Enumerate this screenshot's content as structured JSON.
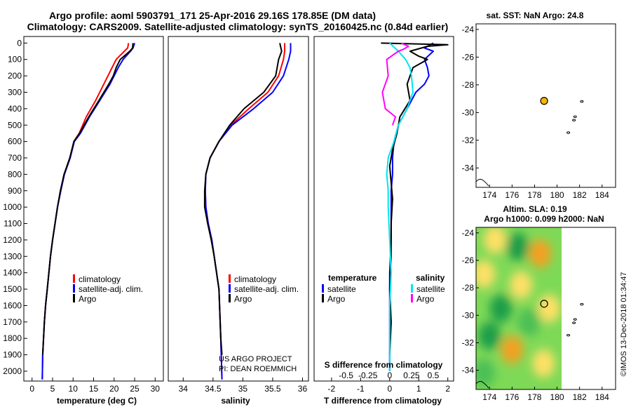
{
  "header": {
    "title_line1": "Argo profile: aoml 5903791_171 25-Apr-2016 29.16S 178.85E (DM data)",
    "title_line2": "Climatology: CARS2009. Satellite-adjusted climatology: synTS_20160425.nc (0.84d earlier)"
  },
  "credits": {
    "project_line1": "US ARGO PROJECT",
    "project_line2": "PI: DEAN ROEMMICH",
    "imos_stamp": "©IMOS 13-Dec-2018 01:34:47"
  },
  "colors": {
    "climatology": "#ff0000",
    "satellite": "#0000ff",
    "argo": "#000000",
    "salinity_satellite": "#00e5ee",
    "salinity_argo": "#ff00ff",
    "marker": "#f5b800"
  },
  "chart_data": [
    {
      "id": "temperature",
      "type": "line",
      "xlabel": "temperature (deg C)",
      "xlim": [
        -2,
        32
      ],
      "ylim": [
        2060,
        -40
      ],
      "xticks": [
        0,
        5,
        10,
        15,
        20,
        25,
        30
      ],
      "yticks": [
        0,
        100,
        200,
        300,
        400,
        500,
        600,
        700,
        800,
        900,
        1000,
        1100,
        1200,
        1300,
        1400,
        1500,
        1600,
        1700,
        1800,
        1900,
        2000
      ],
      "legend": {
        "items": [
          "climatology",
          "satellite-adj. clim.",
          "Argo"
        ]
      },
      "series": [
        {
          "name": "climatology",
          "color": "#ff0000",
          "x": [
            23.5,
            23.3,
            22.5,
            20.5,
            19.5,
            18.5,
            17.5,
            15.5,
            13.2,
            11.5,
            10.2,
            9.2,
            7.8,
            7.0,
            6.2,
            5.6,
            5.0,
            4.5,
            4.1,
            3.7,
            3.3,
            3.0,
            2.8,
            2.6,
            2.5
          ],
          "y": [
            0,
            30,
            50,
            100,
            150,
            200,
            250,
            350,
            450,
            550,
            600,
            700,
            800,
            900,
            1000,
            1100,
            1200,
            1300,
            1400,
            1500,
            1600,
            1700,
            1800,
            1900,
            2050
          ]
        },
        {
          "name": "satellite-adj. clim.",
          "color": "#0000ff",
          "x": [
            25.0,
            24.6,
            24.0,
            22.2,
            21.0,
            20.0,
            19.0,
            16.5,
            14.0,
            11.8,
            10.3,
            9.3,
            7.9,
            7.0,
            6.2,
            5.6,
            5.0,
            4.5,
            4.1,
            3.7,
            3.3,
            3.0,
            2.8,
            2.6,
            2.5
          ],
          "y": [
            0,
            30,
            50,
            100,
            150,
            200,
            250,
            350,
            450,
            550,
            600,
            700,
            800,
            900,
            1000,
            1100,
            1200,
            1300,
            1400,
            1500,
            1600,
            1700,
            1800,
            1900,
            2050
          ]
        },
        {
          "name": "Argo",
          "color": "#000000",
          "x": [
            24.6,
            24.5,
            23.8,
            21.5,
            20.5,
            19.8,
            18.7,
            16.3,
            13.8,
            11.6,
            10.2,
            9.2,
            7.8,
            6.9,
            6.2,
            5.6,
            5.0,
            4.5,
            4.1,
            3.7,
            3.3,
            3.0,
            2.8,
            2.6
          ],
          "y": [
            0,
            30,
            50,
            100,
            150,
            200,
            250,
            350,
            450,
            550,
            600,
            700,
            800,
            900,
            1000,
            1100,
            1200,
            1300,
            1400,
            1500,
            1600,
            1700,
            1800,
            1900
          ]
        }
      ]
    },
    {
      "id": "salinity",
      "type": "line",
      "xlabel": "salinity",
      "xlim": [
        33.75,
        36.1
      ],
      "ylim": [
        2060,
        -40
      ],
      "xticks": [
        34,
        34.5,
        35,
        35.5,
        36
      ],
      "xtick_labels": [
        "34",
        "34.5",
        "35",
        "35.5",
        "36"
      ],
      "legend": {
        "items": [
          "climatology",
          "satellite-adj. clim.",
          "Argo"
        ]
      },
      "series": [
        {
          "name": "climatology",
          "color": "#ff0000",
          "x": [
            35.7,
            35.7,
            35.68,
            35.6,
            35.42,
            35.1,
            34.8,
            34.6,
            34.45,
            34.38,
            34.37,
            34.38,
            34.42,
            34.48,
            34.52,
            34.56,
            34.6,
            34.63,
            34.65
          ],
          "y": [
            0,
            50,
            100,
            200,
            300,
            400,
            500,
            600,
            700,
            800,
            900,
            1000,
            1100,
            1200,
            1300,
            1400,
            1500,
            1800,
            2050
          ]
        },
        {
          "name": "satellite-adj. clim.",
          "color": "#0000ff",
          "x": [
            35.8,
            35.8,
            35.77,
            35.68,
            35.5,
            35.18,
            34.82,
            34.6,
            34.45,
            34.38,
            34.37,
            34.38,
            34.42,
            34.48,
            34.52,
            34.56,
            34.6,
            34.63,
            34.65
          ],
          "y": [
            0,
            50,
            100,
            200,
            300,
            400,
            500,
            600,
            700,
            800,
            900,
            1000,
            1100,
            1200,
            1300,
            1400,
            1500,
            1800,
            2050
          ]
        },
        {
          "name": "Argo",
          "color": "#000000",
          "x": [
            35.62,
            35.65,
            35.6,
            35.55,
            35.35,
            35.02,
            34.78,
            34.6,
            34.45,
            34.38,
            34.36,
            34.36,
            34.41,
            34.47,
            34.52,
            34.56,
            34.6,
            34.63,
            34.65
          ],
          "y": [
            0,
            50,
            100,
            200,
            300,
            400,
            500,
            600,
            700,
            800,
            900,
            1000,
            1100,
            1200,
            1300,
            1400,
            1500,
            1800,
            1900
          ]
        }
      ]
    },
    {
      "id": "difference",
      "type": "line",
      "xlabel": "T difference from climatology",
      "x2label": "S difference from climatology",
      "xlim": [
        -2.6,
        2.2
      ],
      "ylim": [
        2060,
        -40
      ],
      "xticks": [
        -2,
        -1,
        0,
        1,
        2
      ],
      "x2ticks": [
        -0.5,
        -0.25,
        0,
        0.25,
        0.5
      ],
      "x2tick_labels": [
        "-0.5",
        "-0.25",
        "0",
        "0.25",
        "0.5"
      ],
      "legend": {
        "left_header": "temperature",
        "left_items": [
          "satellite",
          "Argo"
        ],
        "right_header": "salinity",
        "right_items": [
          "satellite",
          "Argo"
        ]
      },
      "series": [
        {
          "name": "temperature satellite",
          "color": "#0000ff",
          "x": [
            1.5,
            1.2,
            1.5,
            1.2,
            1.3,
            1.35,
            1.2,
            0.9,
            0.6,
            0.3,
            0.15,
            0.1,
            0.1,
            0.05,
            0.05,
            0.05,
            0.0,
            0.0,
            0.0,
            0.0
          ],
          "y": [
            0,
            30,
            50,
            100,
            150,
            200,
            250,
            300,
            400,
            500,
            600,
            700,
            800,
            900,
            1000,
            1200,
            1400,
            1600,
            1800,
            2000
          ]
        },
        {
          "name": "temperature Argo",
          "color": "#000000",
          "x": [
            -0.3,
            2.0,
            1.3,
            0.7,
            1.0,
            1.3,
            0.8,
            0.6,
            0.7,
            0.35,
            0.25,
            0.1,
            0.0,
            0.05,
            0.1,
            0.05,
            0.05,
            0.0,
            0.05,
            0.0
          ],
          "y": [
            0,
            10,
            20,
            50,
            80,
            100,
            150,
            250,
            350,
            450,
            550,
            650,
            750,
            850,
            950,
            1100,
            1300,
            1500,
            1700,
            1900
          ]
        },
        {
          "name": "salinity satellite",
          "color": "#00e5ee",
          "x": [
            0.0,
            0.3,
            0.55,
            0.7,
            0.75,
            0.8,
            0.6,
            0.3,
            0.15,
            -0.05,
            -0.1,
            -0.05,
            -0.05,
            0.0,
            0.05,
            0.0,
            0.0,
            0.0
          ],
          "y": [
            0,
            50,
            100,
            150,
            200,
            300,
            400,
            500,
            600,
            700,
            800,
            900,
            1000,
            1200,
            1400,
            1600,
            1800,
            2000
          ]
        },
        {
          "name": "salinity Argo",
          "color": "#ff00ff",
          "x": [
            0.4,
            0.65,
            0.45,
            0.3,
            -0.1,
            -0.05,
            -0.25,
            -0.15,
            0.2,
            0.1
          ],
          "y": [
            0,
            20,
            40,
            50,
            100,
            200,
            300,
            400,
            450,
            500
          ]
        }
      ]
    },
    {
      "id": "sst-map",
      "type": "scatter",
      "title": "sat. SST: NaN Argo: 24.8",
      "xlim": [
        172.8,
        185.2
      ],
      "ylim": [
        -35.4,
        -23.6
      ],
      "xticks": [
        174,
        176,
        178,
        180,
        182,
        184
      ],
      "yticks": [
        -24,
        -26,
        -28,
        -30,
        -32,
        -34
      ],
      "argo_position": {
        "lon": 178.85,
        "lat": -29.16
      },
      "islands": [
        {
          "lon": 182.2,
          "lat": -29.2
        },
        {
          "lon": 181.6,
          "lat": -30.3
        },
        {
          "lon": 181.5,
          "lat": -30.55
        },
        {
          "lon": 181.0,
          "lat": -31.45
        }
      ]
    },
    {
      "id": "sla-map",
      "type": "heatmap",
      "title_line1": "Altim. SLA: 0.19",
      "title_line2": "Argo h1000: 0.099 h2000: NaN",
      "xlim": [
        172.8,
        185.2
      ],
      "ylim": [
        -35.4,
        -23.6
      ],
      "xticks": [
        174,
        176,
        178,
        180,
        182,
        184
      ],
      "yticks": [
        -24,
        -26,
        -28,
        -30,
        -32,
        -34
      ],
      "field_extent": {
        "lon": [
          172.8,
          180.0
        ],
        "lat": [
          -35.4,
          -23.6
        ]
      },
      "blobs": [
        {
          "lon": 178.5,
          "lat": -25.5,
          "value": 0.9
        },
        {
          "lon": 174.5,
          "lat": -24.5,
          "value": 0.45
        },
        {
          "lon": 173.5,
          "lat": -27.0,
          "value": 0.6
        },
        {
          "lon": 176.8,
          "lat": -27.8,
          "value": 0.4
        },
        {
          "lon": 176.0,
          "lat": -32.5,
          "value": 0.75
        },
        {
          "lon": 178.8,
          "lat": -33.5,
          "value": 0.55
        },
        {
          "lon": 179.3,
          "lat": -29.5,
          "value": 0.3
        },
        {
          "lon": 175.0,
          "lat": -29.5,
          "value": -0.6
        },
        {
          "lon": 174.0,
          "lat": -31.5,
          "value": -0.5
        },
        {
          "lon": 176.5,
          "lat": -25.0,
          "value": -0.55
        },
        {
          "lon": 177.5,
          "lat": -30.5,
          "value": -0.35
        },
        {
          "lon": 173.5,
          "lat": -34.2,
          "value": -0.4
        }
      ],
      "argo_position": {
        "lon": 178.85,
        "lat": -29.16
      },
      "islands": [
        {
          "lon": 182.2,
          "lat": -29.2
        },
        {
          "lon": 181.6,
          "lat": -30.3
        },
        {
          "lon": 181.5,
          "lat": -30.55
        },
        {
          "lon": 181.0,
          "lat": -31.45
        }
      ]
    }
  ]
}
